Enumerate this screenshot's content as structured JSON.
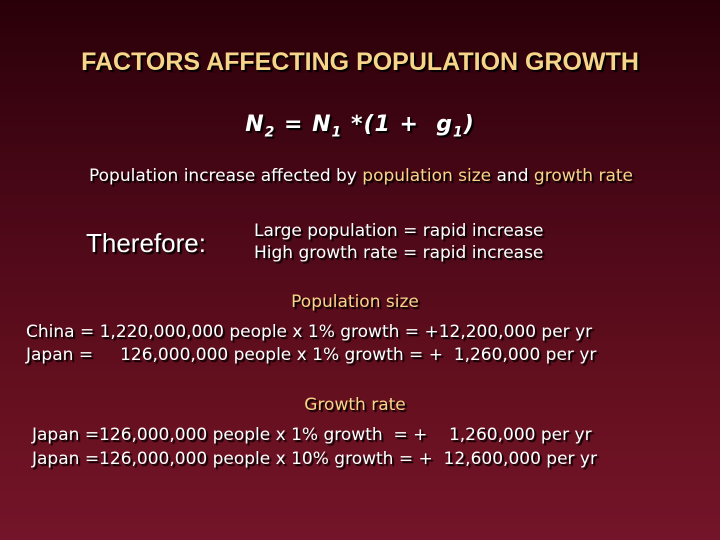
{
  "slide": {
    "title": "FACTORS AFFECTING POPULATION GROWTH",
    "equation": {
      "n2": "N",
      "n2_sub": "2",
      "middle": " = N",
      "n1_sub": "1",
      "rest": " *(1 +  g",
      "g_sub": "1",
      "close": ")"
    },
    "subtitle": {
      "prefix": "Population increase affected by ",
      "term1": "population size",
      "joiner": " and ",
      "term2": "growth rate"
    },
    "therefore_label": "Therefore:",
    "rules": [
      "Large population = rapid increase",
      "High growth rate = rapid increase"
    ],
    "population_size": {
      "heading": "Population size",
      "lines": [
        "China = 1,220,000,000 people x 1% growth = +12,200,000 per yr",
        "Japan =     126,000,000 people x 1% growth = +  1,260,000 per yr"
      ]
    },
    "growth_rate": {
      "heading": "Growth rate",
      "lines": [
        "Japan =126,000,000 people x 1% growth  = +    1,260,000 per yr",
        "Japan =126,000,000 people x 10% growth = +  12,600,000 per yr"
      ]
    }
  },
  "colors": {
    "accent": "#f6d48a",
    "text": "#ffffff",
    "background_top": "#2a0008",
    "background_bottom": "#74142a"
  }
}
